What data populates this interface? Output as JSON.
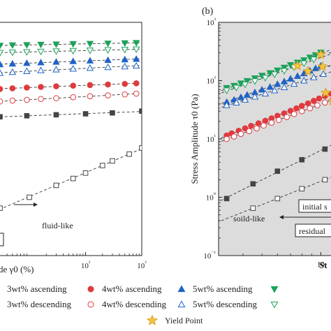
{
  "colors": {
    "ink": "#222222",
    "fit": "#333333",
    "region": "#dcdcdc",
    "c3": "#444444",
    "c4": "#e03a3e",
    "c5": "#1f63c6",
    "c6": "#1aa35a",
    "yield": "#f6c343"
  },
  "chart_data": [
    {
      "panel": "a",
      "type": "scatter",
      "xlabel": "de γ0 (%)",
      "xscale": "log",
      "xlim": [
        3,
        1000
      ],
      "ylim": [
        0.1,
        1000
      ],
      "xticks": [
        {
          "value": 100,
          "label": "10²"
        },
        {
          "value": 1000,
          "label": "10³"
        }
      ],
      "annotations": [
        {
          "text": "fluid-like"
        }
      ],
      "series": [
        {
          "key": "6asc",
          "marker": "filled-down-triangle",
          "color": "#1aa35a",
          "x": [
            3,
            5,
            9,
            16,
            30,
            60,
            120,
            250,
            500,
            800
          ],
          "y": [
            400,
            405,
            410,
            415,
            420,
            425,
            430,
            435,
            440,
            445
          ]
        },
        {
          "key": "6desc",
          "marker": "open-down-triangle",
          "color": "#1aa35a",
          "x": [
            3,
            5,
            9,
            16,
            30,
            60,
            120,
            250,
            500,
            800
          ],
          "y": [
            300,
            305,
            310,
            315,
            320,
            325,
            330,
            335,
            340,
            345
          ]
        },
        {
          "key": "5asc",
          "marker": "filled-up-triangle",
          "color": "#1f63c6",
          "x": [
            3,
            5,
            9,
            16,
            30,
            60,
            120,
            250,
            500,
            800
          ],
          "y": [
            190,
            195,
            200,
            205,
            210,
            215,
            220,
            225,
            230,
            235
          ]
        },
        {
          "key": "5desc",
          "marker": "open-up-triangle",
          "color": "#1f63c6",
          "x": [
            3,
            5,
            9,
            16,
            30,
            60,
            120,
            250,
            500,
            800
          ],
          "y": [
            135,
            140,
            145,
            150,
            155,
            160,
            165,
            170,
            175,
            180
          ]
        },
        {
          "key": "4asc",
          "marker": "filled-circle",
          "color": "#e03a3e",
          "x": [
            3,
            5,
            9,
            16,
            30,
            60,
            120,
            250,
            500,
            800
          ],
          "y": [
            72,
            74,
            76,
            78,
            80,
            82,
            84,
            86,
            88,
            90
          ]
        },
        {
          "key": "4desc",
          "marker": "open-circle",
          "color": "#e03a3e",
          "x": [
            3,
            5,
            9,
            16,
            30,
            60,
            120,
            250,
            500,
            800
          ],
          "y": [
            44,
            45.5,
            47,
            48.5,
            50,
            52,
            54,
            56,
            58,
            60
          ]
        },
        {
          "key": "3asc",
          "marker": "filled-square",
          "color": "#444444",
          "x": [
            3,
            9,
            30,
            100,
            300,
            1000
          ],
          "y": [
            24,
            25,
            26,
            27,
            28,
            30
          ]
        },
        {
          "key": "3desc",
          "marker": "open-square",
          "color": "#444444",
          "x": [
            3,
            10,
            30,
            60,
            100,
            200,
            300,
            600,
            1000
          ],
          "y": [
            0.65,
            1.0,
            1.6,
            2.1,
            2.6,
            3.5,
            4.2,
            5.5,
            7.0
          ]
        }
      ]
    },
    {
      "panel": "b",
      "type": "scatter",
      "label": "(b)",
      "ylabel": "Stress Amplitude τ0 (Pa)",
      "xlabel": "St",
      "xscale": "log",
      "yscale": "log",
      "xlim": [
        3,
        30
      ],
      "ylim": [
        0.1,
        1000
      ],
      "yticks": [
        {
          "value": 0.1,
          "label": "10⁻¹"
        },
        {
          "value": 1,
          "label": "10⁰"
        },
        {
          "value": 10,
          "label": "10¹"
        },
        {
          "value": 100,
          "label": "10²"
        },
        {
          "value": 1000,
          "label": "10³"
        }
      ],
      "xticks": [
        {
          "value": 10,
          "label": "10"
        }
      ],
      "annotations": [
        {
          "text": "initial s"
        },
        {
          "text": "soild-like"
        },
        {
          "text": "residual"
        }
      ],
      "series": [
        {
          "key": "6asc",
          "marker": "filled-down-triangle",
          "color": "#1aa35a",
          "x": [
            3.3,
            3.6,
            3.9,
            4.2,
            4.6,
            5.0,
            5.5,
            6.0,
            6.5,
            7.0,
            7.6,
            8.2,
            8.8,
            9.4,
            10.0
          ],
          "y": [
            75,
            82,
            90,
            99,
            110,
            122,
            135,
            150,
            168,
            186,
            205,
            225,
            250,
            275,
            305
          ]
        },
        {
          "key": "6desc",
          "marker": "open-down-triangle",
          "color": "#1aa35a",
          "x": [
            3.3,
            3.7,
            4.1,
            4.6,
            5.2,
            5.8,
            6.5,
            7.3,
            8.2,
            9.2
          ],
          "y": [
            68,
            76,
            86,
            98,
            112,
            128,
            147,
            170,
            198,
            230
          ]
        },
        {
          "key": "5asc",
          "marker": "filled-up-triangle",
          "color": "#1f63c6",
          "x": [
            3.3,
            3.6,
            3.9,
            4.2,
            4.6,
            5.0,
            5.5,
            6.0,
            6.5,
            7.0,
            7.6,
            8.2,
            8.8,
            9.4,
            10.0,
            14.0
          ],
          "y": [
            43,
            47,
            52,
            57,
            63,
            70,
            78,
            87,
            97,
            108,
            120,
            133,
            148,
            163,
            180,
            188
          ]
        },
        {
          "key": "5desc",
          "marker": "open-up-triangle",
          "color": "#1f63c6",
          "x": [
            3.3,
            3.7,
            4.1,
            4.6,
            5.2,
            5.8,
            6.5,
            7.3,
            8.2,
            9.2,
            10.3
          ],
          "y": [
            38,
            42,
            47,
            53,
            60,
            68,
            77,
            88,
            100,
            114,
            130
          ]
        },
        {
          "key": "4asc",
          "marker": "filled-circle",
          "color": "#e03a3e",
          "x": [
            3.3,
            3.5,
            3.8,
            4.1,
            4.4,
            4.8,
            5.2,
            5.6,
            6.0,
            6.5,
            7.0,
            7.5,
            8.0,
            8.6,
            9.2,
            9.8,
            10.5,
            11.3,
            12.0
          ],
          "y": [
            11.5,
            12.5,
            13.8,
            15.2,
            16.8,
            18.6,
            20.5,
            22.6,
            25,
            27.5,
            30.4,
            33.5,
            37,
            40.8,
            45,
            49.5,
            54.5,
            60,
            66
          ]
        },
        {
          "key": "4desc",
          "marker": "open-circle",
          "color": "#e03a3e",
          "x": [
            3.3,
            3.6,
            3.9,
            4.3,
            4.7,
            5.1,
            5.6,
            6.1,
            6.7,
            7.3,
            8.0,
            8.8,
            9.6,
            10.5,
            11.5
          ],
          "y": [
            10,
            11,
            12.2,
            13.6,
            15.2,
            17,
            19,
            21.2,
            23.8,
            26.7,
            30,
            33.6,
            37.7,
            42.2,
            47.3
          ]
        },
        {
          "key": "3asc",
          "marker": "filled-square",
          "color": "#444444",
          "x": [
            3.3,
            4.5,
            6.0,
            8.0,
            10.5
          ],
          "y": [
            0.95,
            1.7,
            2.8,
            4.4,
            6.7
          ]
        },
        {
          "key": "3desc",
          "marker": "open-square",
          "color": "#444444",
          "x": [
            4.5,
            6.0,
            8.0,
            10.5
          ],
          "y": [
            0.65,
            0.95,
            1.4,
            2.0
          ]
        }
      ],
      "yield_points": {
        "x": [
          7.6,
          10.0,
          8.6,
          10.2,
          10.6,
          11.5,
          12.6,
          13.7
        ],
        "y": [
          180,
          280,
          145,
          175,
          62,
          45,
          7.5,
          2.4
        ]
      }
    }
  ],
  "legend": {
    "items": [
      {
        "key": "3asc",
        "label": "3wt% ascending"
      },
      {
        "key": "4asc",
        "label": "4wt% ascending"
      },
      {
        "key": "5asc",
        "label": "5wt% ascending"
      },
      {
        "key": "6asc",
        "label": ""
      },
      {
        "key": "3desc",
        "label": "3wt% descending"
      },
      {
        "key": "4desc",
        "label": "4wt% descending"
      },
      {
        "key": "5desc",
        "label": "5wt% descending"
      },
      {
        "key": "6desc",
        "label": ""
      },
      {
        "key": "yield",
        "label": "Yield Point"
      }
    ]
  }
}
